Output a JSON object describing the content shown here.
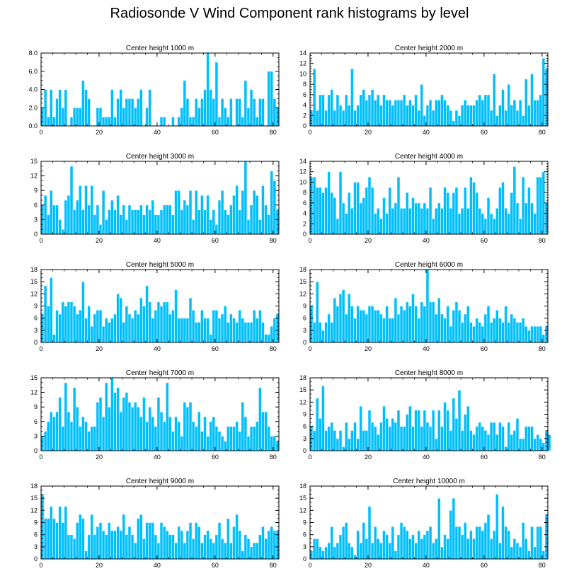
{
  "title": "Radiosonde V Wind Component rank histograms by level",
  "colors": {
    "bar": "#00BFFF",
    "bar_edge": "#ffffff",
    "axis": "#000000",
    "background": "#ffffff"
  },
  "chart_data": [
    {
      "type": "bar",
      "title": "Center height 1000 m",
      "xlabel": "",
      "ylabel": "",
      "xlim": [
        0,
        82
      ],
      "ylim": [
        0,
        8
      ],
      "xticks": [
        0,
        20,
        40,
        60,
        80
      ],
      "xtick_labels": [
        "0",
        "20",
        "40",
        "60",
        "80"
      ],
      "yticks": [
        0,
        2,
        4,
        6,
        8
      ],
      "ytick_labels": [
        "0.0",
        "2.0",
        "4.0",
        "6.0",
        "8.0"
      ],
      "values": [
        2,
        4,
        1,
        4,
        1,
        3,
        4,
        2,
        4,
        0,
        1,
        2,
        2,
        2,
        5,
        4,
        3,
        0,
        0,
        2,
        2,
        1,
        1,
        1,
        4,
        1,
        3,
        4,
        2,
        3,
        3,
        3,
        2,
        3,
        4,
        0,
        2,
        4,
        0,
        0,
        0,
        1,
        1,
        0,
        0,
        1,
        0,
        1,
        2,
        5,
        3,
        1,
        1,
        3,
        2,
        3,
        4,
        8,
        4,
        3,
        7,
        1,
        3,
        2,
        1,
        3,
        0,
        3,
        3,
        1,
        5,
        2,
        4,
        3,
        1,
        3,
        3,
        0,
        6,
        6,
        3,
        2
      ]
    },
    {
      "type": "bar",
      "title": "Center height 2000 m",
      "xlabel": "",
      "ylabel": "",
      "xlim": [
        0,
        82
      ],
      "ylim": [
        0,
        14
      ],
      "xticks": [
        0,
        20,
        40,
        60,
        80
      ],
      "xtick_labels": [
        "0",
        "20",
        "40",
        "60",
        "80"
      ],
      "yticks": [
        0,
        2,
        4,
        6,
        8,
        10,
        12,
        14
      ],
      "ytick_labels": [
        "0",
        "2",
        "4",
        "6",
        "8",
        "10",
        "12",
        "14"
      ],
      "values": [
        3,
        11,
        3,
        6,
        6,
        3,
        6,
        7,
        3,
        6,
        4,
        3,
        6,
        4,
        11,
        3,
        4,
        6,
        7,
        5,
        6,
        7,
        5,
        6,
        4,
        6,
        5,
        5,
        4,
        5,
        5,
        5,
        6,
        4,
        5,
        4,
        6,
        3,
        8,
        2,
        4,
        5,
        3,
        5,
        5,
        6,
        5,
        4,
        3,
        1,
        3,
        2,
        4,
        5,
        4,
        4,
        4,
        5,
        6,
        5,
        6,
        6,
        3,
        10,
        2,
        4,
        7,
        3,
        8,
        4,
        5,
        3,
        5,
        2,
        9,
        4,
        10,
        5,
        5,
        6,
        13,
        11
      ]
    },
    {
      "type": "bar",
      "title": "Center height 3000 m",
      "xlabel": "",
      "ylabel": "",
      "xlim": [
        0,
        82
      ],
      "ylim": [
        0,
        15
      ],
      "xticks": [
        0,
        20,
        40,
        60,
        80
      ],
      "xtick_labels": [
        "0",
        "20",
        "40",
        "60",
        "80"
      ],
      "yticks": [
        0,
        3,
        6,
        9,
        12,
        15
      ],
      "ytick_labels": [
        "0",
        "3",
        "6",
        "9",
        "12",
        "15"
      ],
      "values": [
        6,
        8,
        4,
        9,
        6,
        6,
        3,
        1,
        7,
        8,
        14,
        5,
        7,
        10,
        5,
        10,
        6,
        10,
        4,
        6,
        2,
        9,
        3,
        5,
        7,
        5,
        8,
        4,
        6,
        3,
        6,
        5,
        5,
        5,
        6,
        4,
        6,
        5,
        7,
        4,
        4,
        5,
        6,
        6,
        6,
        4,
        9,
        9,
        5,
        7,
        6,
        9,
        3,
        9,
        5,
        8,
        5,
        8,
        3,
        5,
        2,
        7,
        9,
        5,
        4,
        6,
        8,
        10,
        5,
        9,
        15,
        3,
        6,
        9,
        8,
        3,
        10,
        6,
        4,
        13,
        11,
        5
      ]
    },
    {
      "type": "bar",
      "title": "Center height 4000 m",
      "xlabel": "",
      "ylabel": "",
      "xlim": [
        0,
        82
      ],
      "ylim": [
        0,
        14
      ],
      "xticks": [
        0,
        20,
        40,
        60,
        80
      ],
      "xtick_labels": [
        "0",
        "20",
        "40",
        "60",
        "80"
      ],
      "yticks": [
        0,
        2,
        4,
        6,
        8,
        10,
        12,
        14
      ],
      "ytick_labels": [
        "0",
        "2",
        "4",
        "6",
        "8",
        "10",
        "12",
        "14"
      ],
      "values": [
        11,
        11,
        9,
        9,
        8,
        9,
        12,
        8,
        7,
        3,
        12,
        6,
        4,
        8,
        5,
        10,
        10,
        6,
        7,
        9,
        11,
        9,
        4,
        5,
        3,
        7,
        4,
        9,
        5,
        6,
        11,
        5,
        5,
        8,
        5,
        7,
        6,
        6,
        5,
        6,
        5,
        9,
        3,
        5,
        6,
        5,
        9,
        8,
        5,
        8,
        9,
        4,
        5,
        9,
        5,
        11,
        10,
        8,
        5,
        4,
        3,
        7,
        4,
        3,
        5,
        9,
        10,
        5,
        4,
        8,
        13,
        6,
        3,
        11,
        6,
        9,
        6,
        4,
        11,
        11,
        12,
        6
      ]
    },
    {
      "type": "bar",
      "title": "Center height 5000 m",
      "xlabel": "",
      "ylabel": "",
      "xlim": [
        0,
        82
      ],
      "ylim": [
        0,
        18
      ],
      "xticks": [
        0,
        20,
        40,
        60,
        80
      ],
      "xtick_labels": [
        "0",
        "20",
        "40",
        "60",
        "80"
      ],
      "yticks": [
        0,
        3,
        6,
        9,
        12,
        15,
        18
      ],
      "ytick_labels": [
        "0",
        "3",
        "6",
        "9",
        "12",
        "15",
        "18"
      ],
      "values": [
        7,
        14,
        9,
        16,
        2,
        8,
        7,
        10,
        9,
        10,
        10,
        9,
        7,
        8,
        15,
        6,
        9,
        4,
        7,
        8,
        8,
        4,
        6,
        5,
        6,
        7,
        12,
        11,
        5,
        9,
        7,
        6,
        8,
        7,
        11,
        9,
        14,
        10,
        6,
        8,
        10,
        9,
        10,
        10,
        7,
        8,
        13,
        6,
        6,
        6,
        6,
        11,
        8,
        5,
        5,
        8,
        6,
        6,
        2,
        8,
        8,
        6,
        7,
        9,
        5,
        7,
        6,
        5,
        8,
        6,
        5,
        5,
        5,
        8,
        6,
        8,
        5,
        2,
        2,
        4,
        6,
        7
      ]
    },
    {
      "type": "bar",
      "title": "Center height 6000 m",
      "xlabel": "",
      "ylabel": "",
      "xlim": [
        0,
        82
      ],
      "ylim": [
        0,
        18
      ],
      "xticks": [
        0,
        20,
        40,
        60,
        80
      ],
      "xtick_labels": [
        "0",
        "20",
        "40",
        "60",
        "80"
      ],
      "yticks": [
        0,
        3,
        6,
        9,
        12,
        15,
        18
      ],
      "ytick_labels": [
        "0",
        "3",
        "6",
        "9",
        "12",
        "15",
        "18"
      ],
      "values": [
        9,
        5,
        15,
        5,
        3,
        5,
        7,
        5,
        11,
        9,
        12,
        13,
        7,
        12,
        9,
        6,
        9,
        8,
        8,
        7,
        9,
        9,
        8,
        8,
        7,
        6,
        9,
        6,
        6,
        11,
        7,
        9,
        8,
        10,
        9,
        12,
        9,
        6,
        10,
        9,
        18,
        10,
        10,
        7,
        11,
        7,
        6,
        9,
        4,
        8,
        10,
        8,
        5,
        7,
        9,
        5,
        4,
        6,
        5,
        4,
        7,
        9,
        5,
        6,
        8,
        6,
        5,
        9,
        5,
        7,
        6,
        5,
        5,
        6,
        4,
        3,
        4,
        4,
        4,
        4,
        2,
        4
      ]
    },
    {
      "type": "bar",
      "title": "Center height 7000 m",
      "xlabel": "",
      "ylabel": "",
      "xlim": [
        0,
        82
      ],
      "ylim": [
        0,
        15
      ],
      "xticks": [
        0,
        20,
        40,
        60,
        80
      ],
      "xtick_labels": [
        "0",
        "20",
        "40",
        "60",
        "80"
      ],
      "yticks": [
        0,
        3,
        6,
        9,
        12,
        15
      ],
      "ytick_labels": [
        "0",
        "3",
        "6",
        "9",
        "12",
        "15"
      ],
      "values": [
        3,
        4,
        6,
        8,
        7,
        8,
        11,
        5,
        14,
        8,
        6,
        13,
        9,
        5,
        7,
        6,
        4,
        5,
        5,
        10,
        11,
        7,
        14,
        9,
        15,
        12,
        13,
        8,
        11,
        12,
        10,
        9,
        10,
        9,
        7,
        11,
        6,
        9,
        7,
        5,
        11,
        8,
        6,
        14,
        7,
        4,
        7,
        6,
        3,
        10,
        9,
        10,
        6,
        5,
        8,
        4,
        7,
        3,
        6,
        7,
        5,
        4,
        3,
        2,
        5,
        5,
        5,
        6,
        4,
        10,
        7,
        3,
        5,
        5,
        6,
        13,
        8,
        8,
        5,
        3,
        3,
        2
      ]
    },
    {
      "type": "bar",
      "title": "Center height 8000 m",
      "xlabel": "",
      "ylabel": "",
      "xlim": [
        0,
        82
      ],
      "ylim": [
        0,
        18
      ],
      "xticks": [
        0,
        20,
        40,
        60,
        80
      ],
      "xtick_labels": [
        "0",
        "20",
        "40",
        "60",
        "80"
      ],
      "yticks": [
        0,
        3,
        6,
        9,
        12,
        15,
        18
      ],
      "ytick_labels": [
        "0",
        "3",
        "6",
        "9",
        "12",
        "15",
        "18"
      ],
      "values": [
        6,
        5,
        13,
        8,
        16,
        5,
        6,
        7,
        5,
        3,
        5,
        1,
        7,
        3,
        5,
        7,
        3,
        11,
        5,
        5,
        10,
        7,
        6,
        4,
        7,
        11,
        8,
        6,
        8,
        7,
        10,
        6,
        6,
        9,
        11,
        6,
        10,
        10,
        6,
        10,
        7,
        6,
        10,
        3,
        10,
        6,
        12,
        10,
        5,
        13,
        8,
        15,
        5,
        9,
        11,
        5,
        4,
        6,
        7,
        6,
        5,
        4,
        7,
        7,
        4,
        7,
        6,
        1,
        7,
        4,
        5,
        8,
        3,
        3,
        6,
        6,
        6,
        3,
        4,
        3,
        2,
        5,
        4
      ]
    },
    {
      "type": "bar",
      "title": "Center height 9000 m",
      "xlabel": "",
      "ylabel": "",
      "xlim": [
        0,
        82
      ],
      "ylim": [
        0,
        18
      ],
      "xticks": [
        0,
        20,
        40,
        60,
        80
      ],
      "xtick_labels": [
        "0",
        "20",
        "40",
        "60",
        "80"
      ],
      "yticks": [
        0,
        3,
        6,
        9,
        12,
        15,
        18
      ],
      "ytick_labels": [
        "0",
        "3",
        "6",
        "9",
        "12",
        "15",
        "18"
      ],
      "values": [
        16,
        10,
        10,
        13,
        10,
        9,
        13,
        9,
        13,
        6,
        6,
        5,
        9,
        11,
        10,
        2,
        6,
        11,
        6,
        8,
        9,
        7,
        6,
        9,
        7,
        7,
        8,
        7,
        11,
        6,
        8,
        6,
        4,
        10,
        11,
        5,
        9,
        9,
        9,
        6,
        4,
        9,
        8,
        7,
        6,
        6,
        4,
        8,
        7,
        4,
        7,
        9,
        5,
        9,
        8,
        4,
        6,
        7,
        5,
        4,
        6,
        9,
        5,
        4,
        10,
        4,
        8,
        11,
        7,
        2,
        6,
        5,
        3,
        4,
        4,
        6,
        8,
        5,
        7,
        8,
        7,
        7
      ]
    },
    {
      "type": "bar",
      "title": "Center height 10000 m",
      "xlabel": "",
      "ylabel": "",
      "xlim": [
        0,
        82
      ],
      "ylim": [
        0,
        18
      ],
      "xticks": [
        0,
        20,
        40,
        60,
        80
      ],
      "xtick_labels": [
        "0",
        "20",
        "40",
        "60",
        "80"
      ],
      "yticks": [
        0,
        3,
        6,
        9,
        12,
        15,
        18
      ],
      "ytick_labels": [
        "0",
        "3",
        "6",
        "9",
        "12",
        "15",
        "18"
      ],
      "values": [
        2,
        5,
        5,
        3,
        2,
        3,
        4,
        8,
        3,
        4,
        6,
        8,
        9,
        4,
        3,
        1,
        7,
        4,
        9,
        5,
        13,
        4,
        8,
        5,
        4,
        7,
        6,
        4,
        8,
        2,
        6,
        9,
        8,
        7,
        5,
        6,
        4,
        7,
        5,
        6,
        7,
        8,
        4,
        5,
        15,
        3,
        6,
        5,
        12,
        15,
        8,
        8,
        6,
        9,
        5,
        7,
        5,
        8,
        8,
        7,
        9,
        11,
        5,
        7,
        16,
        4,
        13,
        8,
        7,
        3,
        5,
        4,
        3,
        9,
        5,
        2,
        8,
        3,
        8,
        8,
        2,
        11
      ]
    }
  ]
}
